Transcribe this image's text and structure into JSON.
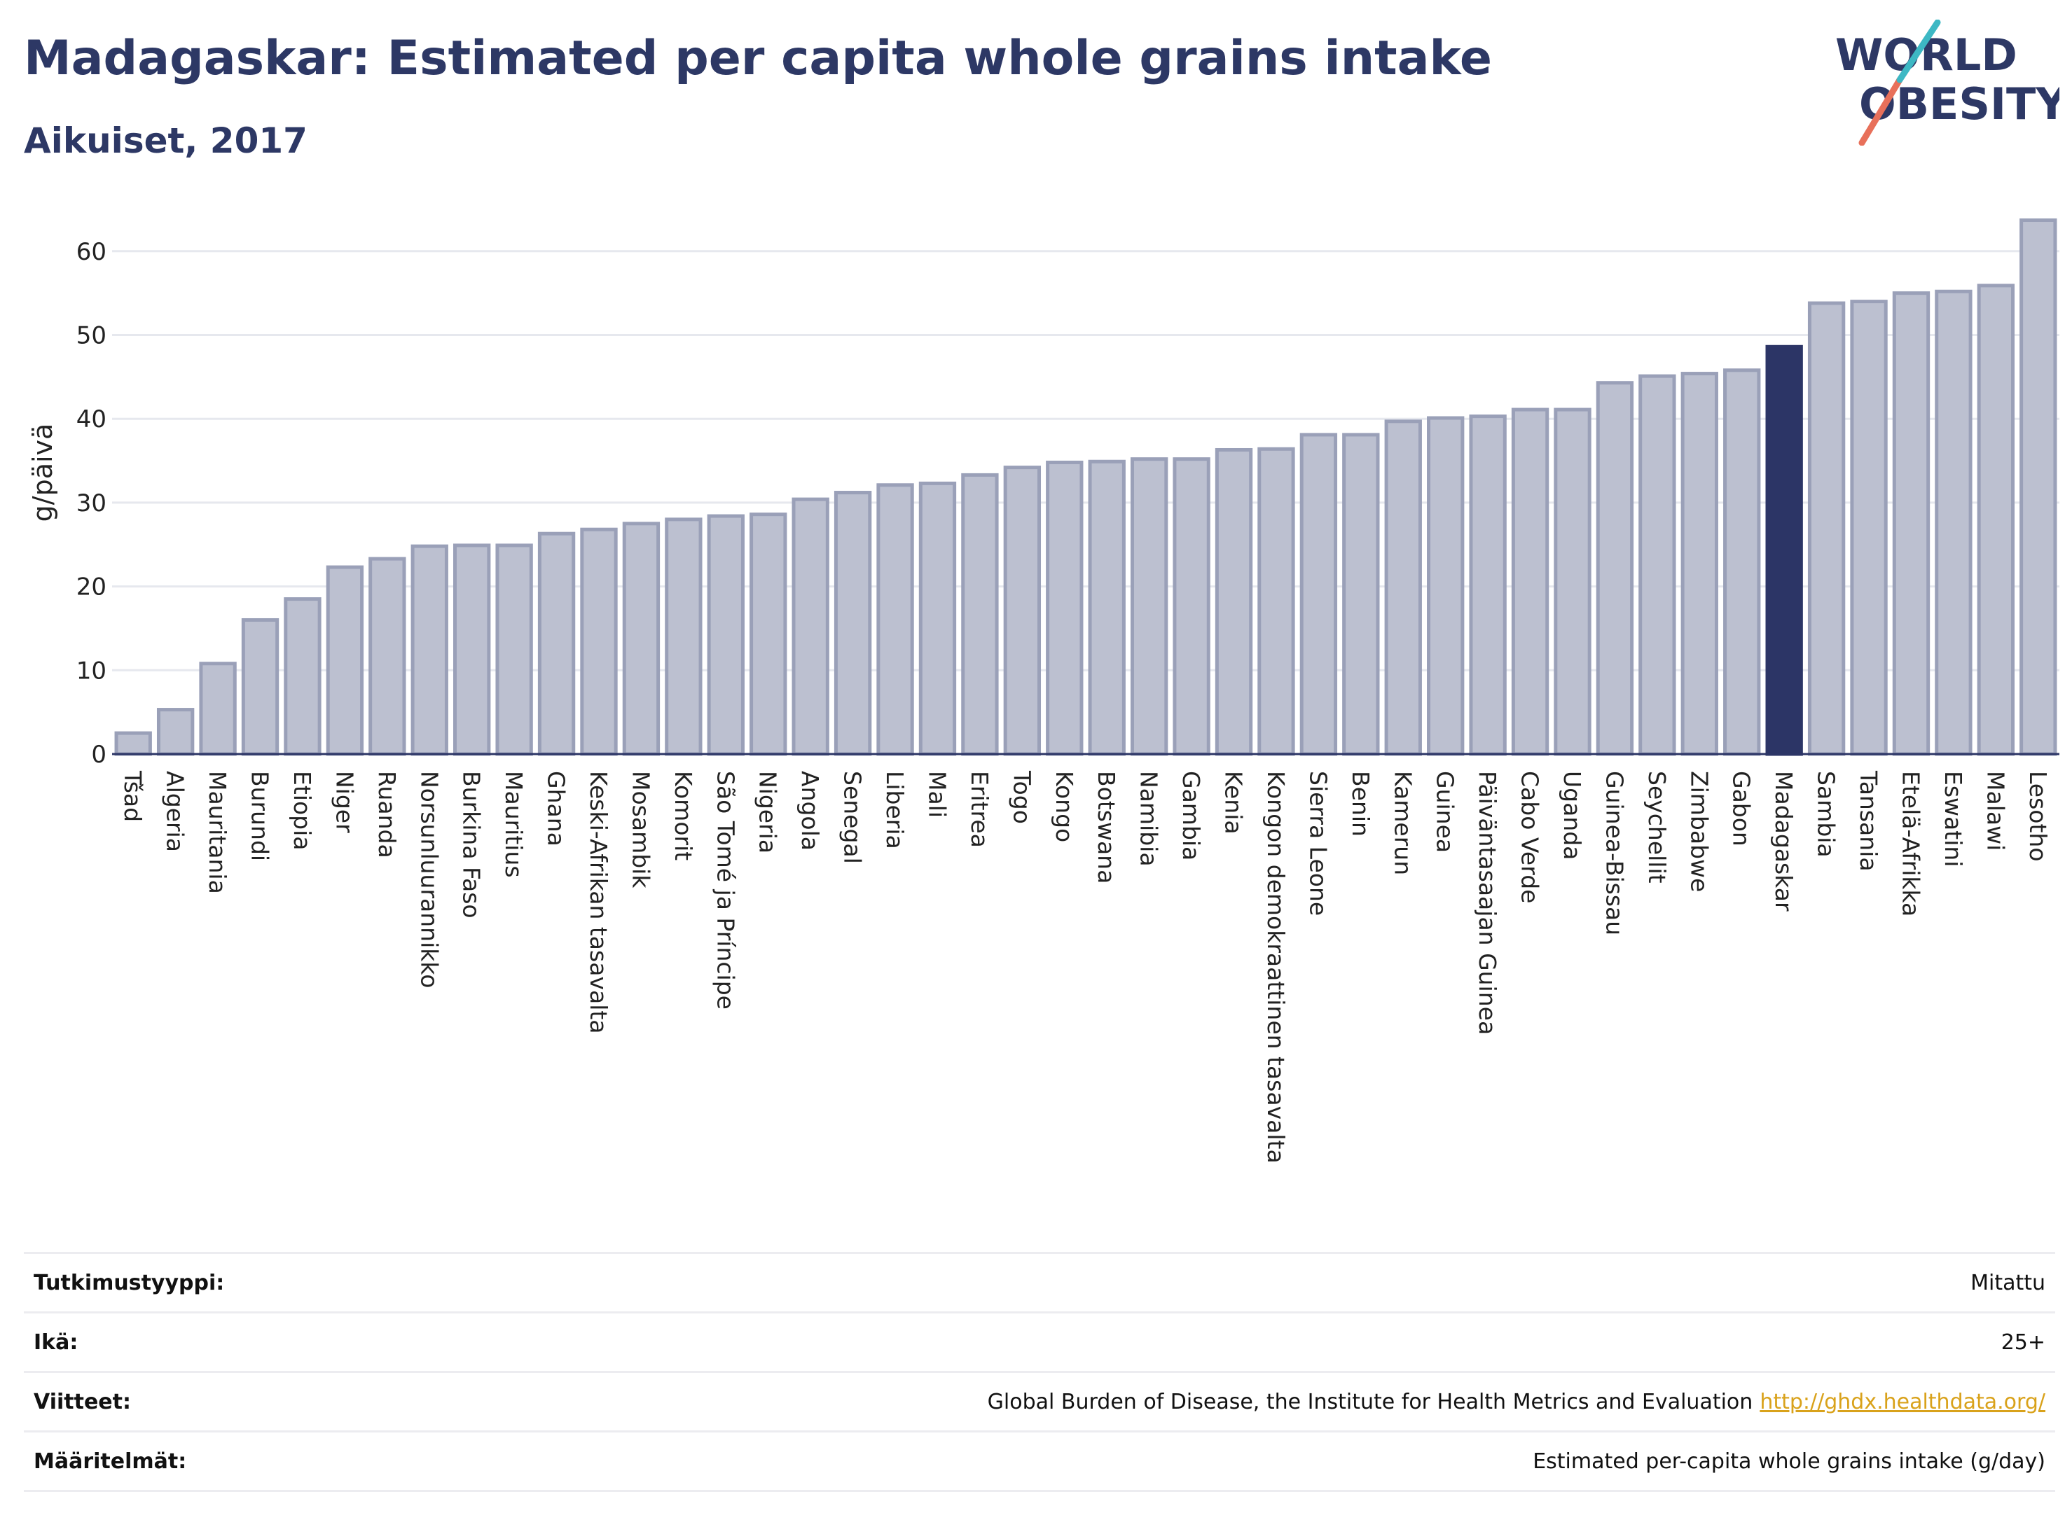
{
  "header": {
    "title": "Madagaskar: Estimated per capita whole grains intake",
    "subtitle": "Aikuiset, 2017"
  },
  "logo": {
    "line1": "WORLD",
    "line2": "OBESITY"
  },
  "colors": {
    "bar_fill": "#bcc0d0",
    "bar_stroke": "#9aa0b8",
    "highlight": "#2c3566",
    "grid": "#e6e8ee",
    "axis": "#2c3566",
    "link": "#d9a21b",
    "logo_dark": "#2d3865",
    "logo_teal": "#3db8c4",
    "logo_coral": "#e8705a"
  },
  "chart_data": {
    "type": "bar",
    "ylabel": "g/päivä",
    "xlabel": "",
    "ylim": [
      0,
      65
    ],
    "yticks": [
      0,
      10,
      20,
      30,
      40,
      50,
      60
    ],
    "grid": true,
    "highlight": "Madagaskar",
    "categories": [
      "Tšad",
      "Algeria",
      "Mauritania",
      "Burundi",
      "Etiopia",
      "Niger",
      "Ruanda",
      "Norsunluurannikko",
      "Burkina Faso",
      "Mauritius",
      "Ghana",
      "Keski-Afrikan tasavalta",
      "Mosambik",
      "Komorit",
      "São Tomé ja Príncipe",
      "Nigeria",
      "Angola",
      "Senegal",
      "Liberia",
      "Mali",
      "Eritrea",
      "Togo",
      "Kongo",
      "Botswana",
      "Namibia",
      "Gambia",
      "Kenia",
      "Kongon demokraattinen tasavalta",
      "Sierra Leone",
      "Benin",
      "Kamerun",
      "Guinea",
      "Päiväntasaajan Guinea",
      "Cabo Verde",
      "Uganda",
      "Guinea-Bissau",
      "Seychellit",
      "Zimbabwe",
      "Gabon",
      "Madagaskar",
      "Sambia",
      "Tansania",
      "Etelä-Afrikka",
      "Eswatini",
      "Malawi",
      "Lesotho"
    ],
    "values": [
      2.5,
      5.3,
      10.8,
      16.0,
      18.5,
      22.3,
      23.3,
      24.8,
      24.9,
      24.9,
      26.3,
      26.8,
      27.5,
      28.0,
      28.4,
      28.6,
      30.4,
      31.2,
      32.1,
      32.3,
      33.3,
      34.2,
      34.8,
      34.9,
      35.2,
      35.2,
      36.3,
      36.4,
      38.1,
      38.1,
      39.7,
      40.1,
      40.3,
      41.1,
      41.1,
      44.3,
      45.1,
      45.4,
      45.8,
      48.6,
      53.8,
      54.0,
      55.0,
      55.2,
      55.9,
      63.7
    ]
  },
  "info": [
    {
      "label": "Tutkimustyyppi:",
      "value": "Mitattu",
      "link": ""
    },
    {
      "label": "Ikä:",
      "value": "25+",
      "link": ""
    },
    {
      "label": "Viitteet:",
      "value": "Global Burden of Disease, the Institute for Health Metrics and Evaluation",
      "link": "http://ghdx.healthdata.org/"
    },
    {
      "label": "Määritelmät:",
      "value": "Estimated per-capita whole grains intake (g/day)",
      "link": ""
    }
  ]
}
